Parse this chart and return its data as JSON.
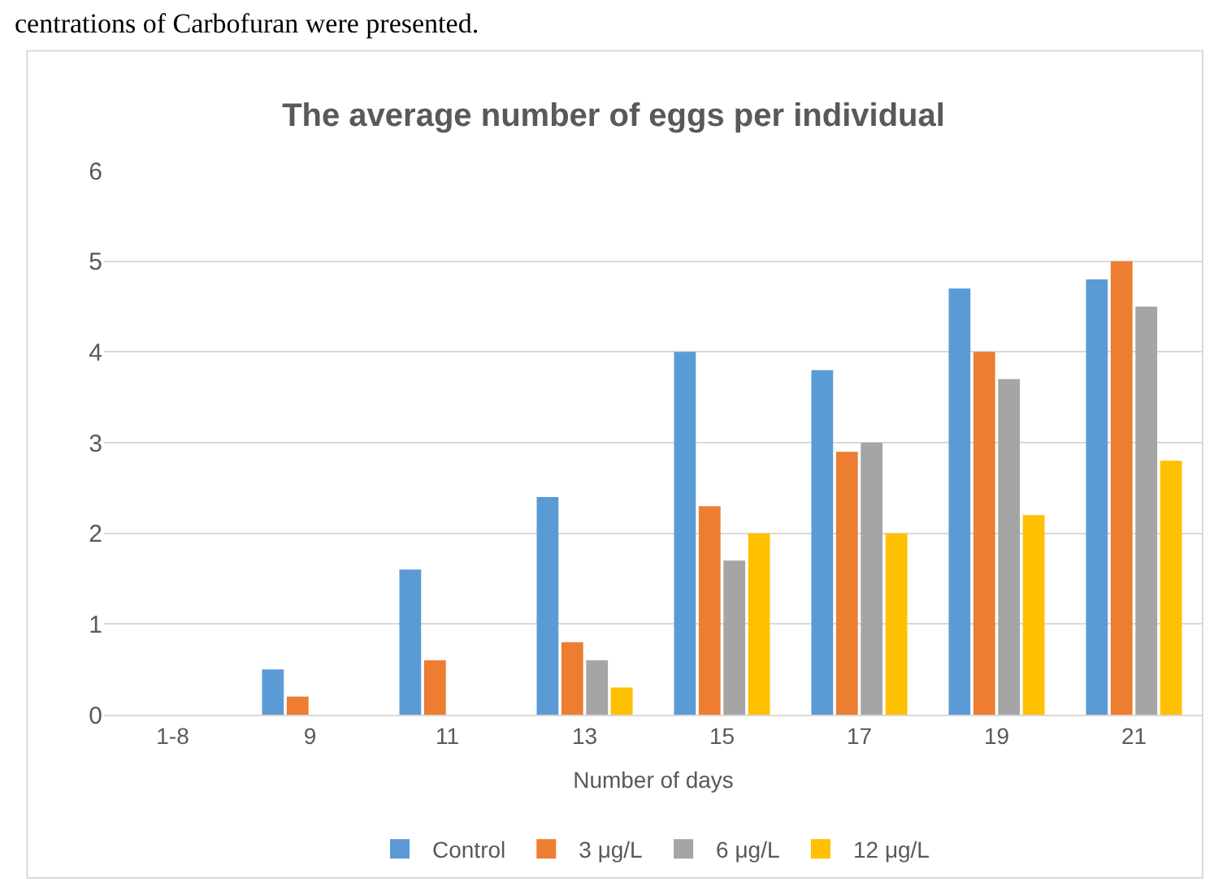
{
  "chart_data": {
    "type": "bar",
    "title": "The average number of eggs per individual",
    "xlabel": "Number of days",
    "categories": [
      "1-8",
      "9",
      "11",
      "13",
      "15",
      "17",
      "19",
      "21"
    ],
    "series": [
      {
        "name": "Control",
        "color": "#5b9bd5",
        "values": [
          0,
          0.5,
          1.6,
          2.4,
          4,
          3.8,
          4.7,
          4.8
        ]
      },
      {
        "name": "3 μg/L",
        "color": "#ed7d31",
        "values": [
          0,
          0.2,
          0.6,
          0.8,
          2.3,
          2.9,
          4,
          5
        ]
      },
      {
        "name": "6 μg/L",
        "color": "#a5a5a5",
        "values": [
          0,
          0,
          0,
          0.6,
          1.7,
          3,
          3.7,
          4.5
        ]
      },
      {
        "name": "12 μg/L",
        "color": "#ffc000",
        "values": [
          0,
          0,
          0,
          0.3,
          2,
          2,
          2.2,
          2.8
        ]
      }
    ],
    "ylim": [
      0,
      6
    ],
    "yticks": [
      0,
      1,
      2,
      3,
      4,
      5,
      6
    ],
    "grid": "y",
    "legend": "bottom",
    "annotations": [
      "centrations of Carbofuran were presented."
    ]
  }
}
